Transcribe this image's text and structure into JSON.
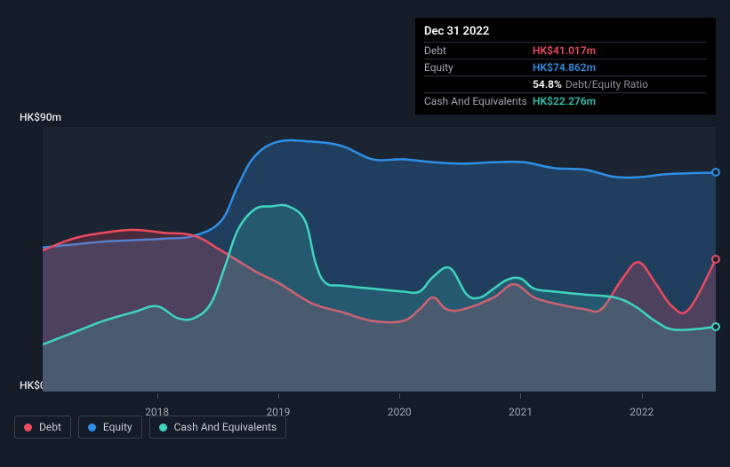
{
  "tooltip": {
    "date": "Dec 31 2022",
    "rows": [
      {
        "label": "Debt",
        "value": "HK$41.017m",
        "color": "#ec4a5f"
      },
      {
        "label": "Equity",
        "value": "HK$74.862m",
        "color": "#2f8ee6"
      },
      {
        "label": "",
        "value": "54.8%",
        "ratio_label": "Debt/Equity Ratio",
        "color": "#ffffff"
      },
      {
        "label": "Cash And Equivalents",
        "value": "HK$22.276m",
        "color": "#2fc4b0"
      }
    ]
  },
  "chart": {
    "type": "area",
    "y_label_top": "HK$90m",
    "y_label_bottom": "HK$0",
    "y_max": 90,
    "y_min": 0,
    "x_labels": [
      "2018",
      "2019",
      "2020",
      "2021",
      "2022"
    ],
    "x_tick_positions_pct": [
      17,
      35,
      53,
      71,
      89
    ],
    "background_color": "#1b2431",
    "page_background": "#141c28",
    "label_fontsize": 12,
    "label_color": "#e5e8ec",
    "series": [
      {
        "name": "Equity",
        "color": "#2f8ee6",
        "fill_opacity": 0.25,
        "line_width": 2.5,
        "end_marker": true,
        "points": [
          {
            "x": 0,
            "y": 49
          },
          {
            "x": 4.5,
            "y": 50
          },
          {
            "x": 9,
            "y": 51
          },
          {
            "x": 13.5,
            "y": 51.5
          },
          {
            "x": 18,
            "y": 52
          },
          {
            "x": 22.5,
            "y": 53
          },
          {
            "x": 26.5,
            "y": 58
          },
          {
            "x": 29,
            "y": 70
          },
          {
            "x": 31.5,
            "y": 80
          },
          {
            "x": 35,
            "y": 85
          },
          {
            "x": 40,
            "y": 85
          },
          {
            "x": 44.5,
            "y": 83.5
          },
          {
            "x": 49,
            "y": 79
          },
          {
            "x": 53.5,
            "y": 79
          },
          {
            "x": 58,
            "y": 78
          },
          {
            "x": 62.5,
            "y": 77.5
          },
          {
            "x": 67,
            "y": 78
          },
          {
            "x": 71.5,
            "y": 78
          },
          {
            "x": 76,
            "y": 76
          },
          {
            "x": 80.5,
            "y": 75.5
          },
          {
            "x": 85,
            "y": 73
          },
          {
            "x": 89,
            "y": 73
          },
          {
            "x": 93,
            "y": 74
          },
          {
            "x": 100,
            "y": 74.5
          }
        ]
      },
      {
        "name": "Debt",
        "color": "#ec4a5f",
        "fill_opacity": 0.22,
        "line_width": 2.5,
        "end_marker": true,
        "points": [
          {
            "x": 0,
            "y": 48
          },
          {
            "x": 4.5,
            "y": 52
          },
          {
            "x": 9,
            "y": 54
          },
          {
            "x": 13.5,
            "y": 55
          },
          {
            "x": 18,
            "y": 54
          },
          {
            "x": 22.5,
            "y": 53
          },
          {
            "x": 26.5,
            "y": 48
          },
          {
            "x": 31.5,
            "y": 41
          },
          {
            "x": 35,
            "y": 37
          },
          {
            "x": 40,
            "y": 30
          },
          {
            "x": 44.5,
            "y": 27
          },
          {
            "x": 49,
            "y": 24
          },
          {
            "x": 53.5,
            "y": 24
          },
          {
            "x": 56,
            "y": 28
          },
          {
            "x": 58,
            "y": 32
          },
          {
            "x": 60,
            "y": 28
          },
          {
            "x": 62.5,
            "y": 28
          },
          {
            "x": 67,
            "y": 32
          },
          {
            "x": 70,
            "y": 36.5
          },
          {
            "x": 73,
            "y": 32
          },
          {
            "x": 76,
            "y": 30
          },
          {
            "x": 80.5,
            "y": 28
          },
          {
            "x": 83,
            "y": 28
          },
          {
            "x": 86,
            "y": 38
          },
          {
            "x": 88.5,
            "y": 44
          },
          {
            "x": 91,
            "y": 37
          },
          {
            "x": 93.5,
            "y": 29
          },
          {
            "x": 96,
            "y": 28
          },
          {
            "x": 100,
            "y": 45
          }
        ]
      },
      {
        "name": "Cash And Equivalents",
        "color": "#3fd4bf",
        "fill_opacity": 0.18,
        "line_width": 2.5,
        "end_marker": true,
        "points": [
          {
            "x": 0,
            "y": 16
          },
          {
            "x": 4.5,
            "y": 20
          },
          {
            "x": 9,
            "y": 24
          },
          {
            "x": 13.5,
            "y": 27
          },
          {
            "x": 17,
            "y": 29
          },
          {
            "x": 20,
            "y": 25
          },
          {
            "x": 22.5,
            "y": 25
          },
          {
            "x": 25,
            "y": 30
          },
          {
            "x": 27,
            "y": 42
          },
          {
            "x": 29,
            "y": 55
          },
          {
            "x": 31.5,
            "y": 62
          },
          {
            "x": 34,
            "y": 63
          },
          {
            "x": 36.5,
            "y": 63
          },
          {
            "x": 39,
            "y": 58
          },
          {
            "x": 40.5,
            "y": 44
          },
          {
            "x": 42,
            "y": 37
          },
          {
            "x": 44.5,
            "y": 36
          },
          {
            "x": 49,
            "y": 35
          },
          {
            "x": 53.5,
            "y": 34
          },
          {
            "x": 56,
            "y": 34
          },
          {
            "x": 58,
            "y": 39
          },
          {
            "x": 60.5,
            "y": 42
          },
          {
            "x": 63,
            "y": 33
          },
          {
            "x": 65,
            "y": 32
          },
          {
            "x": 67,
            "y": 35
          },
          {
            "x": 69,
            "y": 38
          },
          {
            "x": 71,
            "y": 38.5
          },
          {
            "x": 73,
            "y": 35
          },
          {
            "x": 76,
            "y": 34
          },
          {
            "x": 80.5,
            "y": 33
          },
          {
            "x": 85,
            "y": 32
          },
          {
            "x": 88,
            "y": 29
          },
          {
            "x": 91,
            "y": 24
          },
          {
            "x": 94,
            "y": 21
          },
          {
            "x": 100,
            "y": 22
          }
        ]
      }
    ]
  },
  "legend": {
    "items": [
      {
        "label": "Debt",
        "color": "#ec4a5f"
      },
      {
        "label": "Equity",
        "color": "#2f8ee6"
      },
      {
        "label": "Cash And Equivalents",
        "color": "#3fd4bf"
      }
    ],
    "border_color": "#3b4350",
    "text_color": "#c5cad3",
    "fontsize": 12
  }
}
